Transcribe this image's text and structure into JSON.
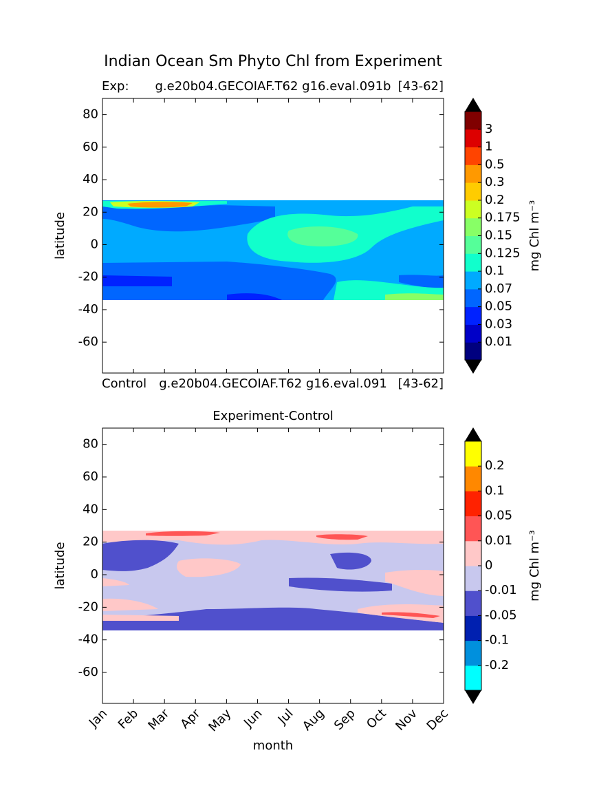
{
  "chart_data": [
    {
      "type": "contour",
      "title": "Indian Ocean Sm Phyto Chl from Experiment",
      "header_left": "Exp:",
      "header_center": "g.e20b04.GECOIAF.T62 g16.eval.091b",
      "header_right": "[43-62]",
      "y_label": "latitude",
      "categories": [
        "Jan",
        "Feb",
        "Mar",
        "Apr",
        "May",
        "Jun",
        "Jul",
        "Aug",
        "Sep",
        "Oct",
        "Nov",
        "Dec"
      ],
      "show_x_labels": false,
      "ylim": [
        -79,
        90
      ],
      "yticks": [
        -60,
        -40,
        -20,
        0,
        20,
        40,
        60,
        80
      ],
      "colorbar_label": "mg Chl m⁻³",
      "levels": [
        0.01,
        0.03,
        0.05,
        0.07,
        0.1,
        0.125,
        0.15,
        0.175,
        0.2,
        0.3,
        0.5,
        1,
        3
      ],
      "colors": [
        "#00007f",
        "#0000c8",
        "#0022ff",
        "#0066ff",
        "#00aaff",
        "#11ffcc",
        "#55ff99",
        "#88ff66",
        "#ccff22",
        "#ffcc00",
        "#ff9900",
        "#ff4400",
        "#dd0000",
        "#800000"
      ]
    },
    {
      "type": "contour",
      "title": "Experiment-Control",
      "header_left": "Control",
      "header_center": "g.e20b04.GECOIAF.T62 g16.eval.091",
      "header_right": "[43-62]",
      "y_label": "latitude",
      "x_label": "month",
      "categories": [
        "Jan",
        "Feb",
        "Mar",
        "Apr",
        "May",
        "Jun",
        "Jul",
        "Aug",
        "Sep",
        "Oct",
        "Nov",
        "Dec"
      ],
      "show_x_labels": true,
      "ylim": [
        -79,
        90
      ],
      "yticks": [
        -60,
        -40,
        -20,
        0,
        20,
        40,
        60,
        80
      ],
      "colorbar_label": "mg Chl m⁻³",
      "levels": [
        -0.2,
        -0.1,
        -0.05,
        -0.01,
        0,
        0.01,
        0.05,
        0.1,
        0.2
      ],
      "colors": [
        "#00ffff",
        "#0090dd",
        "#0020b0",
        "#5050cc",
        "#c8c8ee",
        "#ffc8c8",
        "#ff5555",
        "#ff2200",
        "#ff8800",
        "#ffff00"
      ]
    }
  ]
}
